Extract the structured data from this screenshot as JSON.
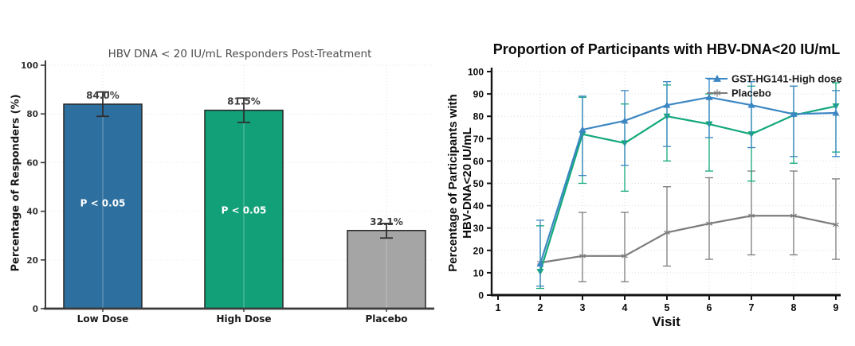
{
  "page": {
    "background": "#ffffff"
  },
  "chart_data": {
    "bar": {
      "type": "bar",
      "title": "HBV DNA < 20 IU/mL Responders Post-Treatment",
      "ylabel": "Percentage of Responders (%)",
      "ylim": [
        0,
        100
      ],
      "yticks": [
        0,
        20,
        40,
        60,
        80,
        100
      ],
      "grid": "horizontal-dotted",
      "categories": [
        "Low Dose",
        "High Dose",
        "Placebo"
      ],
      "values": [
        84.0,
        81.5,
        32.1
      ],
      "value_labels": [
        "84.0%",
        "81.5%",
        "32.1%"
      ],
      "error_low": [
        79,
        76.5,
        29
      ],
      "error_high": [
        89,
        86.5,
        35
      ],
      "bar_colors": [
        "#2d6f9e",
        "#12a079",
        "#a5a5a5"
      ],
      "bar_edge_color": "#262626",
      "error_color": "#2f2f2f",
      "title_color": "#4d4d4d",
      "annotations": [
        {
          "text": "P < 0.05",
          "bar_index": 0,
          "y": 42,
          "color": "#ffffff"
        },
        {
          "text": "P < 0.05",
          "bar_index": 1,
          "y": 39,
          "color": "#ffffff"
        }
      ]
    },
    "line": {
      "type": "line",
      "title": "Proportion of Participants with HBV-DNA<20 IU/mL",
      "xlabel": "Visit",
      "ylabel_lines": [
        "Percentage of Participants with",
        "HBV-DNA<20 IU/mL"
      ],
      "xlim": [
        1,
        9
      ],
      "xticks": [
        1,
        2,
        3,
        4,
        5,
        6,
        7,
        8,
        9
      ],
      "ylim": [
        0,
        100
      ],
      "yticks": [
        0,
        10,
        20,
        30,
        40,
        50,
        60,
        70,
        80,
        90,
        100
      ],
      "grid": "both-dotted",
      "legend_position": "top-right-inside",
      "x": [
        2,
        3,
        4,
        5,
        6,
        7,
        8,
        9
      ],
      "series": [
        {
          "name": "Placebo",
          "color": "#7c7c7c",
          "marker": "star",
          "values": [
            14.5,
            17.5,
            17.5,
            28,
            32,
            35.5,
            35.5,
            31.5
          ],
          "err_low": [
            14.5,
            6,
            6,
            13,
            16,
            18,
            18,
            16
          ],
          "err_high": [
            14.5,
            37,
            37,
            48.5,
            52.5,
            55.5,
            55.5,
            52
          ]
        },
        {
          "name": "",
          "color": "#13a87c",
          "marker": "triangle-down",
          "values": [
            10.5,
            72,
            68,
            80,
            76.5,
            72,
            80.5,
            84.5
          ],
          "err_low": [
            3,
            50,
            46.5,
            60,
            55.5,
            51,
            59,
            64
          ],
          "err_high": [
            31,
            88.5,
            85.5,
            94,
            90,
            93.5,
            93.5,
            95
          ]
        },
        {
          "name": "GST-HG141-High dose",
          "color": "#3c87c3",
          "marker": "triangle-up",
          "values": [
            14,
            74,
            78,
            85,
            88.5,
            85,
            81,
            81.5
          ],
          "err_low": [
            4,
            53.5,
            58,
            66.5,
            70.5,
            66,
            62,
            62
          ],
          "err_high": [
            33.5,
            89,
            91.5,
            95.5,
            97,
            95.5,
            93.5,
            91.5
          ]
        }
      ],
      "legend": [
        "GST-HG141-High dose",
        "Placebo"
      ]
    }
  }
}
